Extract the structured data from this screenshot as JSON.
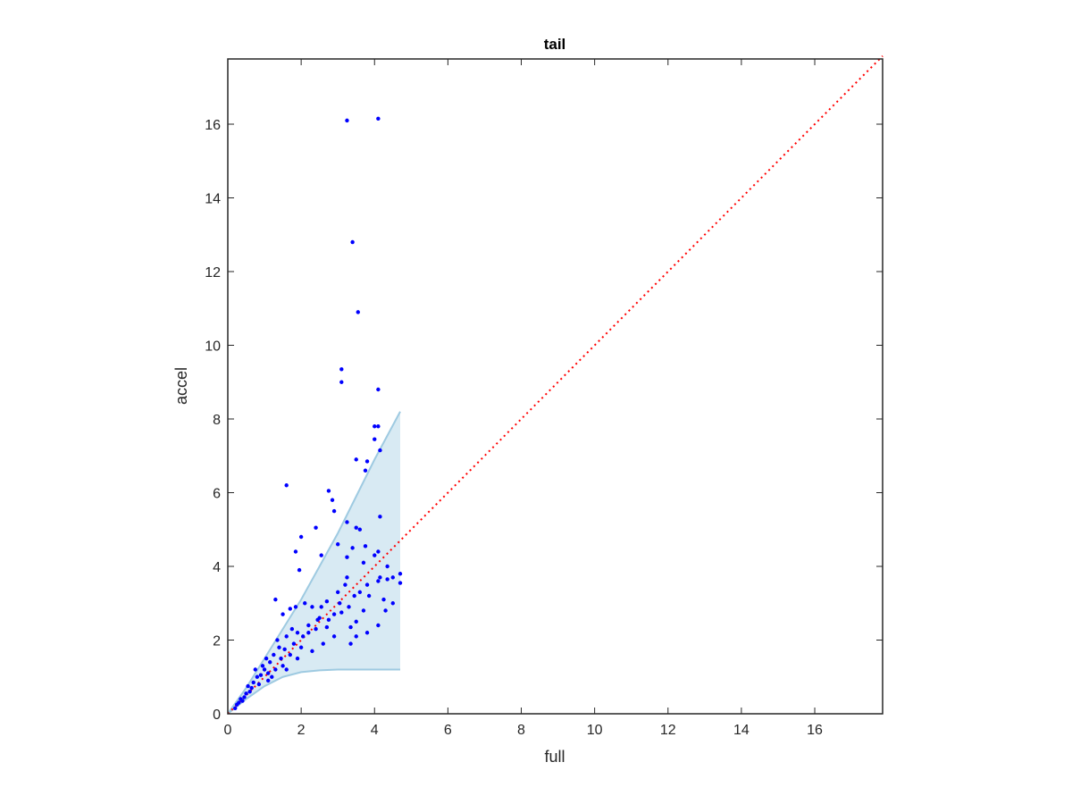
{
  "chart_data": {
    "type": "scatter",
    "title": "tail",
    "x_label": "full",
    "y_label": "accel",
    "xlim": [
      0,
      17.85
    ],
    "ylim": [
      0,
      17.77
    ],
    "xticks": [
      0,
      2,
      4,
      6,
      8,
      10,
      12,
      14,
      16
    ],
    "yticks": [
      0,
      2,
      4,
      6,
      8,
      10,
      12,
      14,
      16
    ],
    "color": "#0000ff",
    "x": [
      3.25,
      4.1,
      3.4,
      3.55,
      3.1,
      3.1,
      4.1,
      4.0,
      4.1,
      4.0,
      4.15,
      3.8,
      3.5,
      3.75,
      1.6,
      2.75,
      2.85,
      2.9,
      3.25,
      2.4,
      3.5,
      3.6,
      4.15,
      4.1,
      3.4,
      3.0,
      3.75,
      4.0,
      2.0,
      2.55,
      1.85,
      1.95,
      3.25,
      3.7,
      4.35,
      4.7,
      4.7,
      4.5,
      4.35,
      4.1,
      3.85,
      4.25,
      4.5,
      4.3,
      3.7,
      3.5,
      3.35,
      3.5,
      3.8,
      4.1,
      3.35,
      1.3,
      1.5,
      1.7,
      1.85,
      2.1,
      2.3,
      2.55,
      2.7,
      3.05,
      3.2,
      3.25,
      3.6,
      3.45,
      3.8,
      4.15,
      2.9,
      2.75,
      2.5,
      2.4,
      2.2,
      2.05,
      1.9,
      1.75,
      1.6,
      2.0,
      1.7,
      1.55,
      1.4,
      1.25,
      1.15,
      1.3,
      1.45,
      1.0,
      0.95,
      0.9,
      0.8,
      0.85,
      0.7,
      0.65,
      0.6,
      0.5,
      0.45,
      0.4,
      0.35,
      0.3,
      0.25,
      0.2,
      1.1,
      1.2,
      1.6,
      2.9,
      2.6,
      2.3,
      1.05,
      0.75,
      1.8,
      2.2,
      2.45,
      2.7,
      3.1,
      3.0,
      3.3,
      1.1,
      0.55,
      1.35,
      1.5,
      1.9
    ],
    "values": [
      16.1,
      16.15,
      12.8,
      10.9,
      9.35,
      9.0,
      8.8,
      7.8,
      7.8,
      7.45,
      7.15,
      6.85,
      6.9,
      6.6,
      6.2,
      6.05,
      5.8,
      5.5,
      5.2,
      5.05,
      5.05,
      5.0,
      5.35,
      4.4,
      4.5,
      4.6,
      4.55,
      4.3,
      4.8,
      4.3,
      4.4,
      3.9,
      4.25,
      4.1,
      4.0,
      3.8,
      3.55,
      3.7,
      3.65,
      3.6,
      3.2,
      3.1,
      3.0,
      2.8,
      2.8,
      2.5,
      2.35,
      2.1,
      2.2,
      2.4,
      1.9,
      3.1,
      2.7,
      2.85,
      2.9,
      3.0,
      2.9,
      2.9,
      3.05,
      3.0,
      3.5,
      3.7,
      3.3,
      3.2,
      3.5,
      3.7,
      2.7,
      2.55,
      2.6,
      2.3,
      2.4,
      2.1,
      2.2,
      2.3,
      2.1,
      1.8,
      1.6,
      1.75,
      1.8,
      1.6,
      1.4,
      1.2,
      1.5,
      1.2,
      1.3,
      1.05,
      1.0,
      0.8,
      0.85,
      0.7,
      0.6,
      0.55,
      0.45,
      0.35,
      0.4,
      0.3,
      0.25,
      0.15,
      0.9,
      1.0,
      1.2,
      2.1,
      1.9,
      1.7,
      1.5,
      1.2,
      1.9,
      2.2,
      2.55,
      2.35,
      2.75,
      3.3,
      2.9,
      1.1,
      0.75,
      2.0,
      1.3,
      1.5
    ],
    "band": {
      "color": "#9ecae1",
      "x": [
        0,
        0.5,
        1,
        1.5,
        2,
        2.5,
        3,
        3.5,
        4,
        4.7
      ],
      "upper": [
        0,
        0.7,
        1.5,
        2.3,
        3.1,
        4.0,
        4.9,
        5.9,
        6.9,
        8.2
      ],
      "lower": [
        0,
        0.4,
        0.75,
        1.0,
        1.13,
        1.18,
        1.2,
        1.2,
        1.2,
        1.2
      ]
    },
    "reference_line": {
      "color": "#ff0000",
      "x": [
        0,
        17.85
      ],
      "y": [
        0,
        17.85
      ]
    }
  }
}
